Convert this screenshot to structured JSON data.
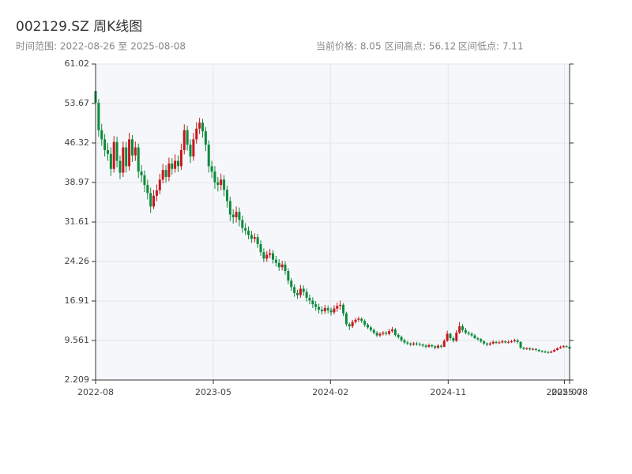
{
  "chart_data": {
    "type": "candlestick",
    "title": "002129.SZ 周K线图",
    "subtitle": "时间范围: 2022-08-26 至 2025-08-08",
    "stats": [
      "当前价格: 8.05",
      "区间高点: 56.12",
      "区间低点: 7.11"
    ],
    "up_color": "#c8161d",
    "down_color": "#0e8a3c",
    "grid": true,
    "candle_fields": [
      "open",
      "close",
      "low",
      "high"
    ],
    "xlim": [
      0,
      155
    ],
    "xticks": [
      {
        "value": 0,
        "label": "2022-08"
      },
      {
        "value": 38.5,
        "label": "2023-05"
      },
      {
        "value": 76.8,
        "label": "2024-02"
      },
      {
        "value": 115.3,
        "label": "2024-11"
      },
      {
        "value": 153.3,
        "label": "2025-07"
      },
      {
        "value": 155,
        "label": "2025-08"
      }
    ],
    "ylim": [
      2.209,
      61.02
    ],
    "yticks": [
      2.209,
      9.561,
      16.91,
      24.26,
      31.61,
      38.97,
      46.32,
      53.67,
      61.02
    ],
    "candles": [
      [
        56.0,
        53.8,
        52.4,
        56.12
      ],
      [
        53.8,
        48.7,
        47.5,
        54.5
      ],
      [
        48.7,
        47.0,
        45.8,
        49.9
      ],
      [
        47.0,
        45.0,
        43.8,
        48.0
      ],
      [
        45.0,
        44.3,
        43.0,
        46.3
      ],
      [
        44.3,
        41.5,
        40.2,
        45.5
      ],
      [
        41.5,
        46.5,
        40.8,
        47.6
      ],
      [
        46.5,
        43.0,
        41.8,
        47.5
      ],
      [
        43.0,
        40.8,
        39.6,
        44.0
      ],
      [
        40.8,
        45.5,
        40.0,
        46.6
      ],
      [
        45.5,
        42.0,
        40.8,
        46.5
      ],
      [
        42.0,
        47.0,
        41.2,
        48.2
      ],
      [
        47.0,
        44.0,
        42.8,
        47.8
      ],
      [
        44.0,
        45.5,
        43.0,
        46.6
      ],
      [
        45.5,
        41.0,
        39.8,
        46.2
      ],
      [
        41.0,
        40.3,
        39.0,
        42.2
      ],
      [
        40.3,
        38.5,
        37.2,
        41.2
      ],
      [
        38.5,
        37.0,
        35.8,
        39.5
      ],
      [
        37.0,
        34.5,
        33.3,
        38.0
      ],
      [
        34.5,
        36.5,
        34.0,
        37.6
      ],
      [
        36.5,
        37.5,
        35.5,
        38.6
      ],
      [
        37.5,
        39.5,
        36.8,
        40.6
      ],
      [
        39.5,
        41.3,
        38.8,
        42.4
      ],
      [
        41.3,
        40.0,
        38.9,
        42.2
      ],
      [
        40.0,
        42.5,
        39.2,
        43.6
      ],
      [
        42.5,
        41.5,
        40.4,
        43.5
      ],
      [
        41.5,
        43.0,
        40.8,
        44.2
      ],
      [
        43.0,
        42.0,
        40.9,
        44.0
      ],
      [
        42.0,
        45.0,
        41.3,
        46.2
      ],
      [
        45.0,
        48.7,
        44.2,
        49.8
      ],
      [
        48.7,
        46.0,
        44.9,
        49.5
      ],
      [
        46.0,
        43.8,
        42.6,
        47.0
      ],
      [
        43.8,
        47.0,
        43.0,
        48.2
      ],
      [
        47.0,
        49.0,
        46.2,
        50.2
      ],
      [
        49.0,
        50.1,
        48.0,
        51.0
      ],
      [
        50.1,
        48.5,
        47.3,
        50.8
      ],
      [
        48.5,
        46.0,
        44.8,
        49.3
      ],
      [
        46.0,
        42.0,
        40.8,
        46.8
      ],
      [
        42.0,
        41.0,
        39.8,
        43.0
      ],
      [
        41.0,
        39.0,
        37.8,
        42.0
      ],
      [
        39.0,
        38.5,
        37.3,
        40.0
      ],
      [
        38.5,
        39.5,
        37.5,
        40.6
      ],
      [
        39.5,
        37.6,
        36.4,
        40.3
      ],
      [
        37.6,
        35.5,
        34.3,
        38.4
      ],
      [
        35.5,
        33.0,
        31.8,
        36.3
      ],
      [
        33.0,
        32.5,
        31.3,
        34.0
      ],
      [
        32.5,
        33.5,
        31.5,
        34.5
      ],
      [
        33.5,
        32.0,
        30.8,
        34.3
      ],
      [
        32.0,
        30.5,
        29.6,
        32.8
      ],
      [
        30.5,
        30.0,
        29.2,
        31.4
      ],
      [
        30.0,
        29.2,
        28.4,
        30.8
      ],
      [
        29.2,
        28.5,
        27.7,
        30.0
      ],
      [
        28.5,
        28.8,
        27.8,
        29.5
      ],
      [
        28.8,
        27.5,
        26.8,
        29.4
      ],
      [
        27.5,
        26.0,
        25.3,
        28.2
      ],
      [
        26.0,
        24.8,
        24.1,
        26.7
      ],
      [
        24.8,
        25.5,
        24.2,
        26.2
      ],
      [
        25.5,
        25.8,
        24.9,
        26.6
      ],
      [
        25.8,
        24.6,
        23.9,
        26.4
      ],
      [
        24.6,
        24.0,
        23.3,
        25.3
      ],
      [
        24.0,
        23.2,
        22.5,
        24.7
      ],
      [
        23.2,
        23.7,
        22.6,
        24.4
      ],
      [
        23.7,
        22.5,
        21.8,
        24.3
      ],
      [
        22.5,
        20.7,
        20.0,
        23.0
      ],
      [
        20.7,
        19.5,
        18.8,
        21.2
      ],
      [
        19.5,
        18.4,
        17.7,
        20.0
      ],
      [
        18.4,
        18.0,
        17.3,
        19.0
      ],
      [
        18.0,
        19.2,
        17.5,
        19.9
      ],
      [
        19.2,
        18.6,
        17.9,
        19.8
      ],
      [
        18.6,
        17.5,
        16.8,
        19.2
      ],
      [
        17.5,
        17.0,
        16.3,
        18.1
      ],
      [
        17.0,
        16.3,
        15.6,
        17.6
      ],
      [
        16.3,
        15.8,
        15.1,
        16.9
      ],
      [
        15.8,
        15.3,
        14.6,
        16.4
      ],
      [
        15.3,
        15.0,
        14.4,
        15.9
      ],
      [
        15.0,
        15.6,
        14.5,
        16.2
      ],
      [
        15.6,
        15.2,
        14.6,
        16.1
      ],
      [
        15.2,
        14.8,
        14.2,
        15.7
      ],
      [
        14.8,
        15.5,
        14.4,
        16.1
      ],
      [
        15.5,
        16.0,
        14.9,
        16.6
      ],
      [
        16.0,
        16.2,
        15.3,
        17.0
      ],
      [
        16.2,
        14.6,
        14.1,
        16.5
      ],
      [
        14.6,
        12.6,
        12.2,
        14.9
      ],
      [
        12.6,
        12.2,
        11.5,
        12.9
      ],
      [
        12.2,
        13.0,
        11.9,
        13.4
      ],
      [
        13.0,
        13.4,
        12.7,
        13.8
      ],
      [
        13.4,
        13.6,
        13.0,
        14.0
      ],
      [
        13.6,
        13.2,
        12.8,
        13.9
      ],
      [
        13.2,
        12.5,
        12.1,
        13.5
      ],
      [
        12.5,
        12.0,
        11.7,
        12.8
      ],
      [
        12.0,
        11.5,
        11.2,
        12.3
      ],
      [
        11.5,
        11.0,
        10.7,
        11.8
      ],
      [
        11.0,
        10.5,
        10.2,
        11.3
      ],
      [
        10.5,
        10.8,
        10.2,
        11.1
      ],
      [
        10.8,
        11.0,
        10.5,
        11.3
      ],
      [
        11.0,
        10.8,
        10.5,
        11.3
      ],
      [
        10.8,
        11.3,
        10.5,
        11.7
      ],
      [
        11.3,
        11.6,
        11.0,
        12.1
      ],
      [
        11.6,
        10.6,
        10.3,
        11.9
      ],
      [
        10.6,
        10.2,
        9.9,
        10.9
      ],
      [
        10.2,
        9.6,
        9.3,
        10.5
      ],
      [
        9.6,
        9.2,
        8.9,
        9.9
      ],
      [
        9.2,
        9.0,
        8.7,
        9.5
      ],
      [
        9.0,
        8.8,
        8.5,
        9.2
      ],
      [
        8.8,
        9.0,
        8.6,
        9.3
      ],
      [
        9.0,
        8.9,
        8.6,
        9.3
      ],
      [
        8.9,
        8.8,
        8.5,
        9.2
      ],
      [
        8.8,
        8.6,
        8.3,
        9.0
      ],
      [
        8.6,
        8.4,
        8.1,
        8.9
      ],
      [
        8.4,
        8.7,
        8.2,
        9.0
      ],
      [
        8.7,
        8.5,
        8.2,
        8.9
      ],
      [
        8.5,
        8.2,
        7.9,
        8.7
      ],
      [
        8.2,
        8.6,
        8.0,
        8.9
      ],
      [
        8.6,
        8.4,
        8.1,
        8.8
      ],
      [
        8.4,
        9.5,
        8.3,
        9.8
      ],
      [
        9.5,
        10.8,
        9.3,
        11.4
      ],
      [
        10.8,
        10.0,
        9.6,
        11.0
      ],
      [
        10.0,
        9.5,
        9.2,
        10.3
      ],
      [
        9.5,
        11.0,
        9.3,
        11.5
      ],
      [
        11.0,
        12.2,
        10.8,
        13.0
      ],
      [
        12.2,
        11.5,
        11.1,
        12.6
      ],
      [
        11.5,
        11.0,
        10.7,
        11.9
      ],
      [
        11.0,
        10.8,
        10.5,
        11.3
      ],
      [
        10.8,
        10.5,
        10.2,
        11.1
      ],
      [
        10.5,
        10.0,
        9.8,
        10.8
      ],
      [
        10.0,
        9.8,
        9.5,
        10.2
      ],
      [
        9.8,
        9.4,
        9.1,
        10.0
      ],
      [
        9.4,
        9.0,
        8.7,
        9.6
      ],
      [
        9.0,
        8.8,
        8.5,
        9.2
      ],
      [
        8.8,
        9.0,
        8.6,
        9.3
      ],
      [
        9.0,
        9.3,
        8.8,
        9.6
      ],
      [
        9.3,
        9.1,
        8.9,
        9.5
      ],
      [
        9.1,
        9.2,
        8.9,
        9.5
      ],
      [
        9.2,
        9.4,
        9.0,
        9.7
      ],
      [
        9.4,
        9.2,
        9.0,
        9.6
      ],
      [
        9.2,
        9.3,
        9.0,
        9.6
      ],
      [
        9.3,
        9.4,
        9.1,
        9.7
      ],
      [
        9.4,
        9.6,
        9.2,
        9.9
      ],
      [
        9.6,
        9.3,
        9.0,
        9.8
      ],
      [
        9.3,
        8.2,
        8.0,
        9.4
      ],
      [
        8.2,
        8.0,
        7.8,
        8.4
      ],
      [
        8.0,
        8.1,
        7.8,
        8.3
      ],
      [
        8.1,
        7.9,
        7.7,
        8.3
      ],
      [
        7.9,
        8.0,
        7.7,
        8.2
      ],
      [
        8.0,
        7.8,
        7.6,
        8.1
      ],
      [
        7.8,
        7.6,
        7.4,
        8.0
      ],
      [
        7.6,
        7.5,
        7.3,
        7.8
      ],
      [
        7.5,
        7.4,
        7.2,
        7.7
      ],
      [
        7.4,
        7.3,
        7.11,
        7.6
      ],
      [
        7.3,
        7.5,
        7.2,
        7.7
      ],
      [
        7.5,
        7.8,
        7.4,
        8.0
      ],
      [
        7.8,
        8.1,
        7.7,
        8.3
      ],
      [
        8.1,
        8.3,
        8.0,
        8.6
      ],
      [
        8.3,
        8.5,
        8.2,
        8.7
      ],
      [
        8.5,
        8.4,
        8.2,
        8.7
      ],
      [
        8.4,
        8.05,
        7.9,
        8.5
      ]
    ]
  }
}
